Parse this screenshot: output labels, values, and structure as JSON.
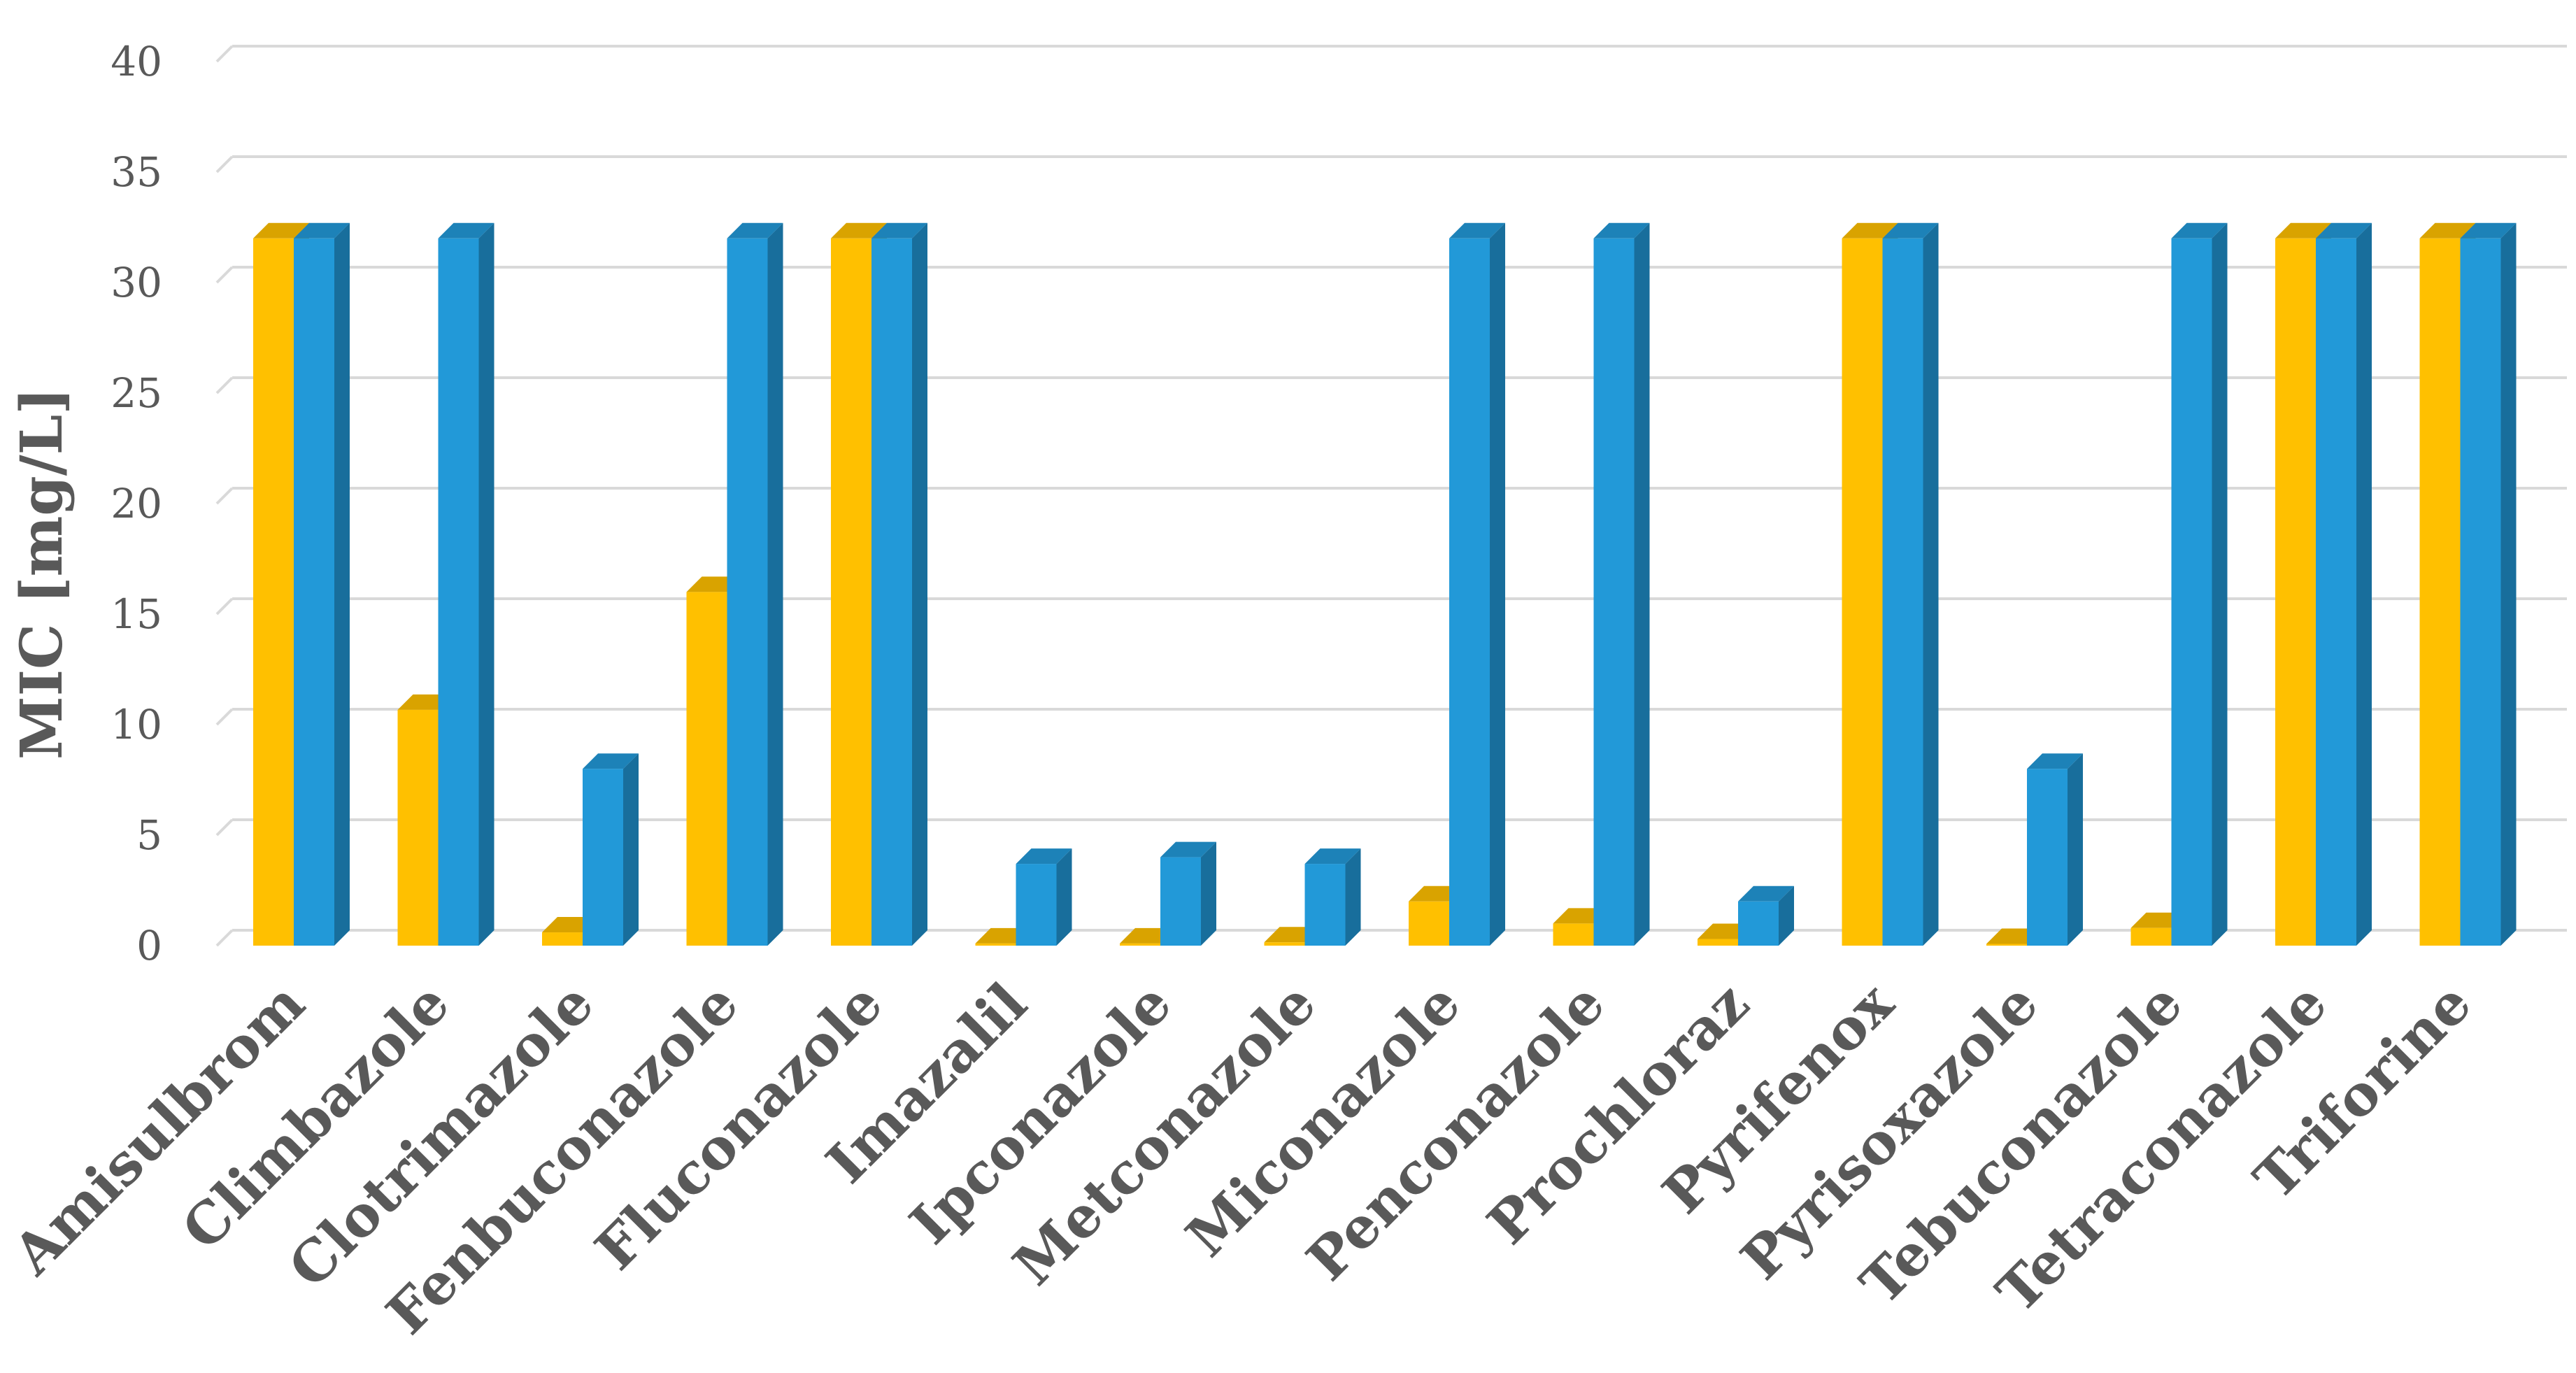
{
  "chart_data": {
    "type": "bar",
    "title": "",
    "xlabel": "",
    "ylabel": "MIC [mg/L]",
    "ylim": [
      0,
      40
    ],
    "yticks": [
      0,
      5,
      10,
      15,
      20,
      25,
      30,
      35,
      40
    ],
    "grid": true,
    "legend": "none",
    "style": "3d-clustered-column",
    "categories": [
      "Amisulbrom",
      "Climbazole",
      "Clotrimazole",
      "Fenbuconazole",
      "Fluconazole",
      "Imazalil",
      "Ipconazole",
      "Metconazole",
      "Miconazole",
      "Penconazole",
      "Prochloraz",
      "Pyrifenox",
      "Pyrisoxazole",
      "Tebuconazole",
      "Tetraconazole",
      "Triforine"
    ],
    "series": [
      {
        "color": "#FFC000",
        "values": [
          32,
          10.67,
          0.6,
          16,
          32,
          0.1,
          0.1,
          0.15,
          2,
          1,
          0.3,
          32,
          0.08,
          0.8,
          32,
          32
        ]
      },
      {
        "color": "#2299D8",
        "values": [
          32,
          32,
          8,
          32,
          32,
          3.7,
          4,
          3.7,
          32,
          32,
          2,
          32,
          8,
          32,
          32,
          32
        ]
      }
    ]
  }
}
